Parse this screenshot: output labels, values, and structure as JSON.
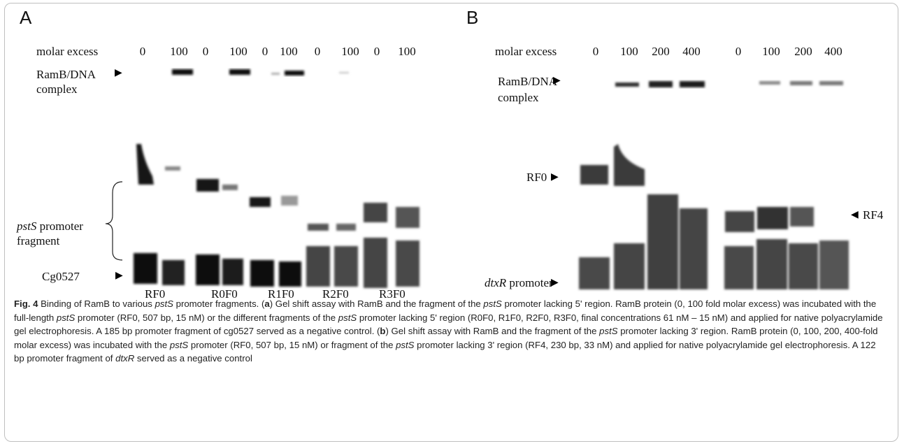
{
  "panelA": {
    "letter": "A",
    "molar_excess_label": "molar excess",
    "lanes": [
      "0",
      "100",
      "0",
      "100",
      "0",
      "100",
      "0",
      "100",
      "0",
      "100"
    ],
    "complex_label_1": "RamB/DNA",
    "complex_label_2": "complex",
    "fragment_label_1a": "pstS",
    "fragment_label_1b": " promoter",
    "fragment_label_2": "fragment",
    "control_label": "Cg0527",
    "fragment_names": [
      "RF0",
      "R0F0",
      "R1F0",
      "R2F0",
      "R3F0"
    ]
  },
  "panelB": {
    "letter": "B",
    "molar_excess_label": "molar excess",
    "lanes": [
      "0",
      "100",
      "200",
      "400",
      "0",
      "100",
      "200",
      "400"
    ],
    "complex_label_1": "RamB/DNA",
    "complex_label_2": "complex",
    "rf0_label": "RF0",
    "rf4_label": "RF4",
    "control_label_a": "dtxR",
    "control_label_b": " promoter"
  },
  "caption": {
    "fig": "Fig. 4",
    "p1": " Binding of RamB to various ",
    "i1": "pstS",
    "p2": " promoter fragments. (",
    "a": "a",
    "p3": ") Gel shift assay with RamB and the fragment of the ",
    "i2": "pstS",
    "p4": " promoter lacking 5' region. RamB protein (0, 100 fold molar excess) was incubated with the full-length ",
    "i3": "pstS",
    "p5": " promoter (RF0, 507 bp, 15 nM) or the different fragments of the ",
    "i4": "pstS",
    "p6": " promoter lacking 5' region (R0F0, R1F0, R2F0, R3F0, final concentrations 61 nM – 15 nM) and applied for native polyacrylamide gel electrophoresis. A 185 bp promoter fragment of cg0527 served as a negative control. (",
    "b": "b",
    "p7": ") Gel shift assay with RamB and the fragment of the ",
    "i5": "pstS",
    "p8": " promoter lacking 3' region. RamB protein (0, 100, 200, 400-fold molar excess) was incubated with the ",
    "i6": "pstS",
    "p9": " promoter (RF0, 507 bp, 15 nM) or fragment of the ",
    "i7": "pstS",
    "p10": " promoter lacking 3' region (RF4, 230 bp, 33 nM) and applied for native polyacrylamide gel electrophoresis. A 122 bp promoter fragment of ",
    "i8": "dtxR",
    "p11": " served as a negative control"
  }
}
